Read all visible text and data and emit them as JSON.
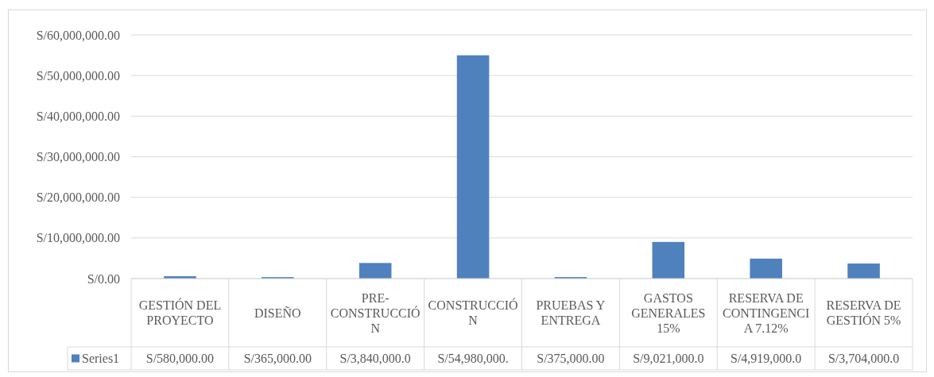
{
  "chart_data": {
    "type": "bar",
    "categories": [
      "GESTIÓN DEL PROYECTO",
      "DISEÑO",
      "PRE-CONSTRUCCIÓN",
      "CONSTRUCCIÓN",
      "PRUEBAS Y ENTREGA",
      "GASTOS GENERALES 15%",
      "RESERVA DE CONTINGENCIA 7.12%",
      "RESERVA DE GESTIÓN 5%"
    ],
    "series": [
      {
        "name": "Series1",
        "color": "#4f81bd",
        "values": [
          580000,
          365000,
          3840000,
          54980000,
          375000,
          9021000,
          4919000,
          3704000
        ],
        "value_labels": [
          "S/580,000.00",
          "S/365,000.00",
          "S/3,840,000.0",
          "S/54,980,000.",
          "S/375,000.00",
          "S/9,021,000.0",
          "S/4,919,000.0",
          "S/3,704,000.0"
        ]
      }
    ],
    "ylim": [
      0,
      60000000
    ],
    "yticks": [
      {
        "value": 0,
        "label": "S/0.00"
      },
      {
        "value": 10000000,
        "label": "S/10,000,000.00"
      },
      {
        "value": 20000000,
        "label": "S/20,000,000.00"
      },
      {
        "value": 30000000,
        "label": "S/30,000,000.00"
      },
      {
        "value": 40000000,
        "label": "S/40,000,000.00"
      },
      {
        "value": 50000000,
        "label": "S/50,000,000.00"
      },
      {
        "value": 60000000,
        "label": "S/60,000,000.00"
      }
    ],
    "grid": "y",
    "legend": "bottom"
  }
}
